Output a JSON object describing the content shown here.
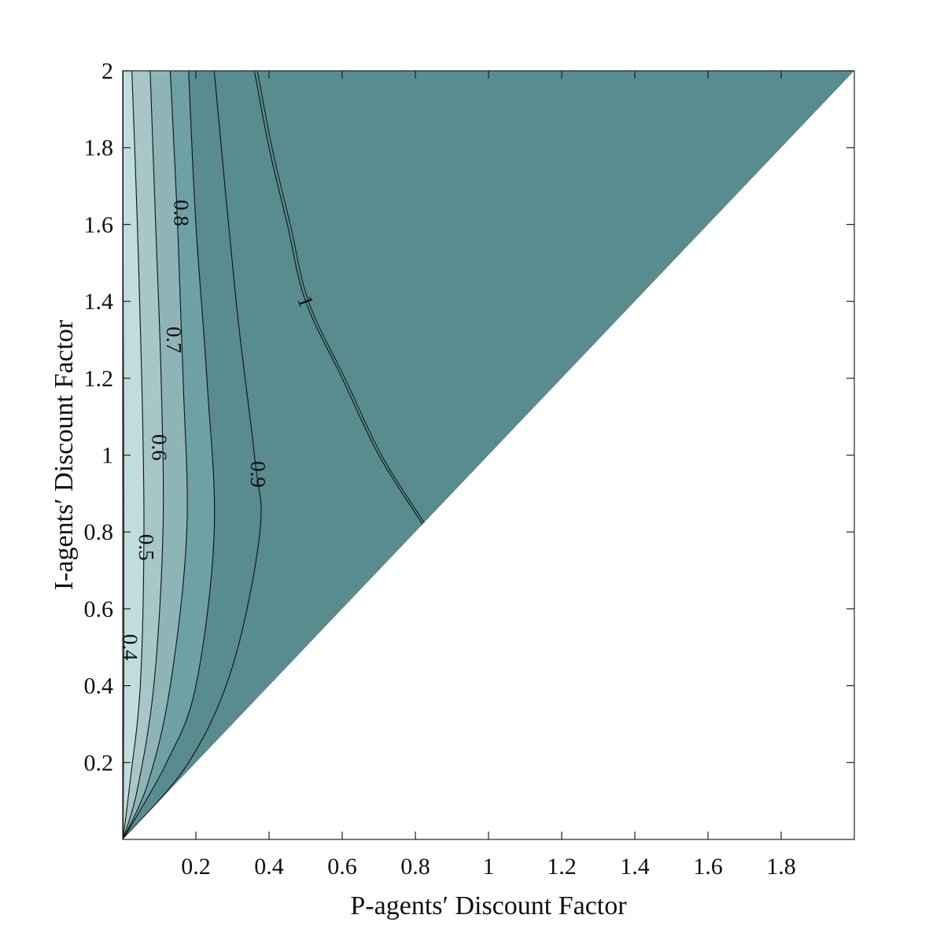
{
  "chart_data": {
    "type": "contour",
    "xlabel": "P-agents′ Discount Factor",
    "ylabel": "I-agents′ Discount Factor",
    "xlim": [
      0,
      2
    ],
    "ylim": [
      0,
      2
    ],
    "xticks": [
      0.2,
      0.4,
      0.6,
      0.8,
      1,
      1.2,
      1.4,
      1.6,
      1.8
    ],
    "yticks": [
      0.2,
      0.4,
      0.6,
      0.8,
      1,
      1.2,
      1.4,
      1.6,
      1.8,
      2
    ],
    "xtick_labels": [
      "0.2",
      "0.4",
      "0.6",
      "0.8",
      "1",
      "1.2",
      "1.4",
      "1.6",
      "1.8"
    ],
    "ytick_labels": [
      "0.2",
      "0.4",
      "0.6",
      "0.8",
      "1",
      "1.2",
      "1.4",
      "1.6",
      "1.8",
      "2"
    ],
    "domain": "region where I-agents' discount factor exceeds P-agents' discount factor (y > x)",
    "fill_colors": [
      "#d9cfe3",
      "#c0dcdc",
      "#a7c6c8",
      "#8fb4b8",
      "#6da1a5",
      "#588c8f"
    ],
    "contour_levels": [
      {
        "level": 0.4,
        "label": "0.4",
        "points": [
          [
            0.001,
            0.001
          ],
          [
            0.002,
            0.2
          ],
          [
            0.003,
            0.45
          ],
          [
            0.003,
            0.8
          ],
          [
            0.002,
            1.2
          ],
          [
            0.001,
            1.5
          ],
          [
            0.001,
            2.0
          ]
        ]
      },
      {
        "level": 0.5,
        "label": "0.5",
        "points": [
          [
            0.001,
            0.001
          ],
          [
            0.02,
            0.15
          ],
          [
            0.048,
            0.4
          ],
          [
            0.058,
            0.8
          ],
          [
            0.052,
            1.2
          ],
          [
            0.04,
            1.6
          ],
          [
            0.025,
            2.0
          ]
        ]
      },
      {
        "level": 0.6,
        "label": "0.6",
        "points": [
          [
            0.001,
            0.001
          ],
          [
            0.04,
            0.13
          ],
          [
            0.085,
            0.4
          ],
          [
            0.11,
            0.8
          ],
          [
            0.105,
            1.2
          ],
          [
            0.09,
            1.6
          ],
          [
            0.075,
            2.0
          ]
        ]
      },
      {
        "level": 0.7,
        "label": "0.7",
        "points": [
          [
            0.001,
            0.001
          ],
          [
            0.07,
            0.15
          ],
          [
            0.13,
            0.4
          ],
          [
            0.175,
            0.8
          ],
          [
            0.165,
            1.2
          ],
          [
            0.15,
            1.6
          ],
          [
            0.13,
            2.0
          ]
        ]
      },
      {
        "level": 0.8,
        "label": "0.8",
        "points": [
          [
            0.001,
            0.001
          ],
          [
            0.12,
            0.2
          ],
          [
            0.2,
            0.4
          ],
          [
            0.25,
            0.8
          ],
          [
            0.23,
            1.2
          ],
          [
            0.2,
            1.6
          ],
          [
            0.18,
            2.0
          ]
        ]
      },
      {
        "level": 0.9,
        "label": "0.9",
        "points": [
          [
            0.001,
            0.001
          ],
          [
            0.18,
            0.2
          ],
          [
            0.3,
            0.45
          ],
          [
            0.375,
            0.8
          ],
          [
            0.36,
            1.0
          ],
          [
            0.31,
            1.4
          ],
          [
            0.25,
            2.0
          ]
        ]
      },
      {
        "level": 1,
        "label": "1",
        "points": [
          [
            0.82,
            0.82
          ],
          [
            0.7,
            1.0
          ],
          [
            0.6,
            1.2
          ],
          [
            0.5,
            1.4
          ],
          [
            0.45,
            1.6
          ],
          [
            0.4,
            1.8
          ],
          [
            0.36,
            2.0
          ]
        ]
      }
    ],
    "contour_label_positions": [
      {
        "label": "0.4",
        "x": 0.02,
        "y": 0.5
      },
      {
        "label": "0.5",
        "x": 0.065,
        "y": 0.76
      },
      {
        "label": "0.6",
        "x": 0.1,
        "y": 1.02
      },
      {
        "label": "0.7",
        "x": 0.14,
        "y": 1.3
      },
      {
        "label": "0.8",
        "x": 0.16,
        "y": 1.63
      },
      {
        "label": "0.9",
        "x": 0.37,
        "y": 0.95
      },
      {
        "label": "1",
        "x": 0.5,
        "y": 1.4
      }
    ]
  }
}
